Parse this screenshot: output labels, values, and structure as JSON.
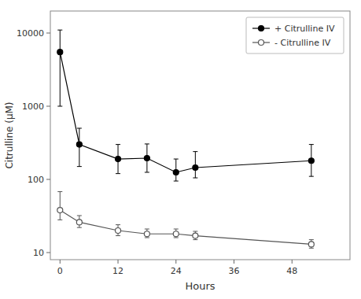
{
  "chart_data": {
    "type": "line",
    "xlabel": "Hours",
    "ylabel": "Citrulline (μM)",
    "x": [
      0,
      4,
      12,
      18,
      24,
      28,
      52
    ],
    "xlim": [
      -2,
      60
    ],
    "xticks": [
      0,
      12,
      24,
      36,
      48
    ],
    "ylim": [
      8,
      20000
    ],
    "yticks": [
      10,
      100,
      1000,
      10000
    ],
    "log": "y",
    "grid": false,
    "legend": "upper-right",
    "series": [
      {
        "name": "+ Citrulline IV",
        "color": "#000000",
        "marker": "circle",
        "values": [
          5500,
          300,
          190,
          195,
          125,
          145,
          180
        ],
        "error_low": [
          4500,
          150,
          70,
          70,
          30,
          40,
          70
        ],
        "error_high": [
          5500,
          200,
          110,
          110,
          65,
          95,
          120
        ]
      },
      {
        "name": "- Citrulline IV",
        "color": "#555555",
        "marker": "open-circle",
        "values": [
          38,
          26,
          20,
          18,
          18,
          17,
          13
        ],
        "error_low": [
          10,
          4,
          3,
          2,
          2,
          2,
          1.5
        ],
        "error_high": [
          30,
          6,
          4,
          3,
          3,
          2.5,
          2
        ]
      }
    ]
  }
}
